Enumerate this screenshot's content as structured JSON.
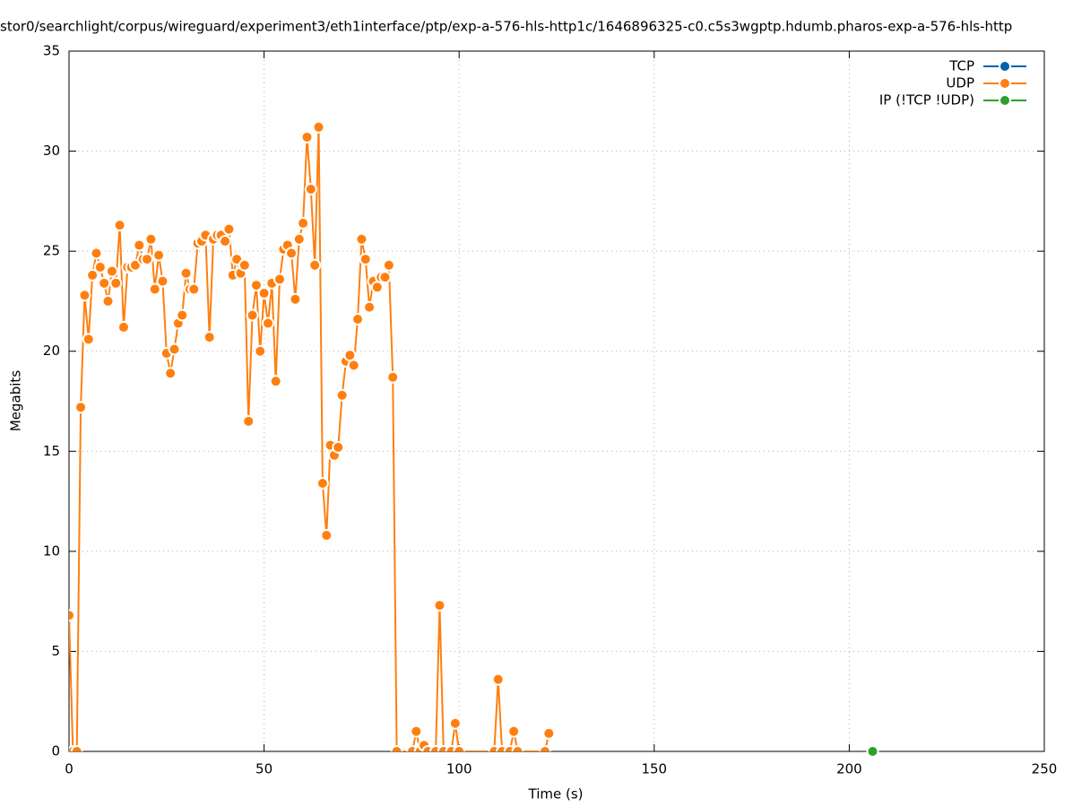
{
  "chart_data": {
    "type": "line",
    "title": "stor0/searchlight/corpus/wireguard/experiment3/eth1interface/ptp/exp-a-576-hls-http1c/1646896325-c0.c5s3wgptp.hdumb.pharos-exp-a-576-hls-http",
    "x_label": "Time (s)",
    "y_label": "Megabits",
    "xlim": [
      0,
      250
    ],
    "ylim": [
      0,
      35
    ],
    "xticks": [
      0,
      50,
      100,
      150,
      200,
      250
    ],
    "yticks": [
      0,
      5,
      10,
      15,
      20,
      25,
      30,
      35
    ],
    "grid": true,
    "legend": "top-right",
    "series": [
      {
        "name": "TCP",
        "color": "#0060ad",
        "x": [],
        "values": []
      },
      {
        "name": "UDP",
        "color": "#ff7f0e",
        "x": [
          0,
          1,
          2,
          3,
          4,
          5,
          6,
          7,
          8,
          9,
          10,
          11,
          12,
          13,
          14,
          15,
          16,
          17,
          18,
          19,
          20,
          21,
          22,
          23,
          24,
          25,
          26,
          27,
          28,
          29,
          30,
          31,
          32,
          33,
          34,
          35,
          36,
          37,
          38,
          39,
          40,
          41,
          42,
          43,
          44,
          45,
          46,
          47,
          48,
          49,
          50,
          51,
          52,
          53,
          54,
          55,
          56,
          57,
          58,
          59,
          60,
          61,
          62,
          63,
          64,
          65,
          66,
          67,
          68,
          69,
          70,
          71,
          72,
          73,
          74,
          75,
          76,
          77,
          78,
          79,
          80,
          81,
          82,
          83,
          84,
          88,
          89,
          90,
          91,
          92,
          94,
          95,
          96,
          98,
          99,
          100,
          109,
          110,
          111,
          113,
          114,
          115,
          122,
          123
        ],
        "values": [
          6.8,
          0,
          0,
          17.2,
          22.8,
          20.6,
          23.8,
          24.9,
          24.2,
          23.4,
          22.5,
          24.0,
          23.4,
          26.3,
          21.2,
          24.2,
          24.2,
          24.3,
          25.3,
          24.6,
          24.6,
          25.6,
          23.1,
          24.8,
          23.5,
          19.9,
          18.9,
          20.1,
          21.4,
          21.8,
          23.9,
          23.1,
          23.1,
          25.4,
          25.5,
          25.8,
          20.7,
          25.6,
          25.8,
          25.8,
          25.5,
          26.1,
          23.8,
          24.6,
          23.9,
          24.3,
          16.5,
          21.8,
          23.3,
          20.0,
          22.9,
          21.4,
          23.4,
          18.5,
          23.6,
          25.1,
          25.3,
          24.9,
          22.6,
          25.6,
          26.4,
          30.7,
          28.1,
          24.3,
          31.2,
          13.4,
          10.8,
          15.3,
          14.8,
          15.2,
          17.8,
          19.5,
          19.8,
          19.3,
          21.6,
          25.6,
          24.6,
          22.2,
          23.5,
          23.2,
          23.7,
          23.7,
          24.3,
          18.7,
          0,
          0,
          1.0,
          0,
          0.3,
          0,
          0,
          7.3,
          0,
          0,
          1.4,
          0,
          0,
          3.6,
          0,
          0,
          1.0,
          0,
          0,
          0.9
        ]
      },
      {
        "name": "IP (!TCP  !UDP)",
        "color": "#2ca02c",
        "x": [
          206
        ],
        "values": [
          0
        ]
      }
    ]
  }
}
